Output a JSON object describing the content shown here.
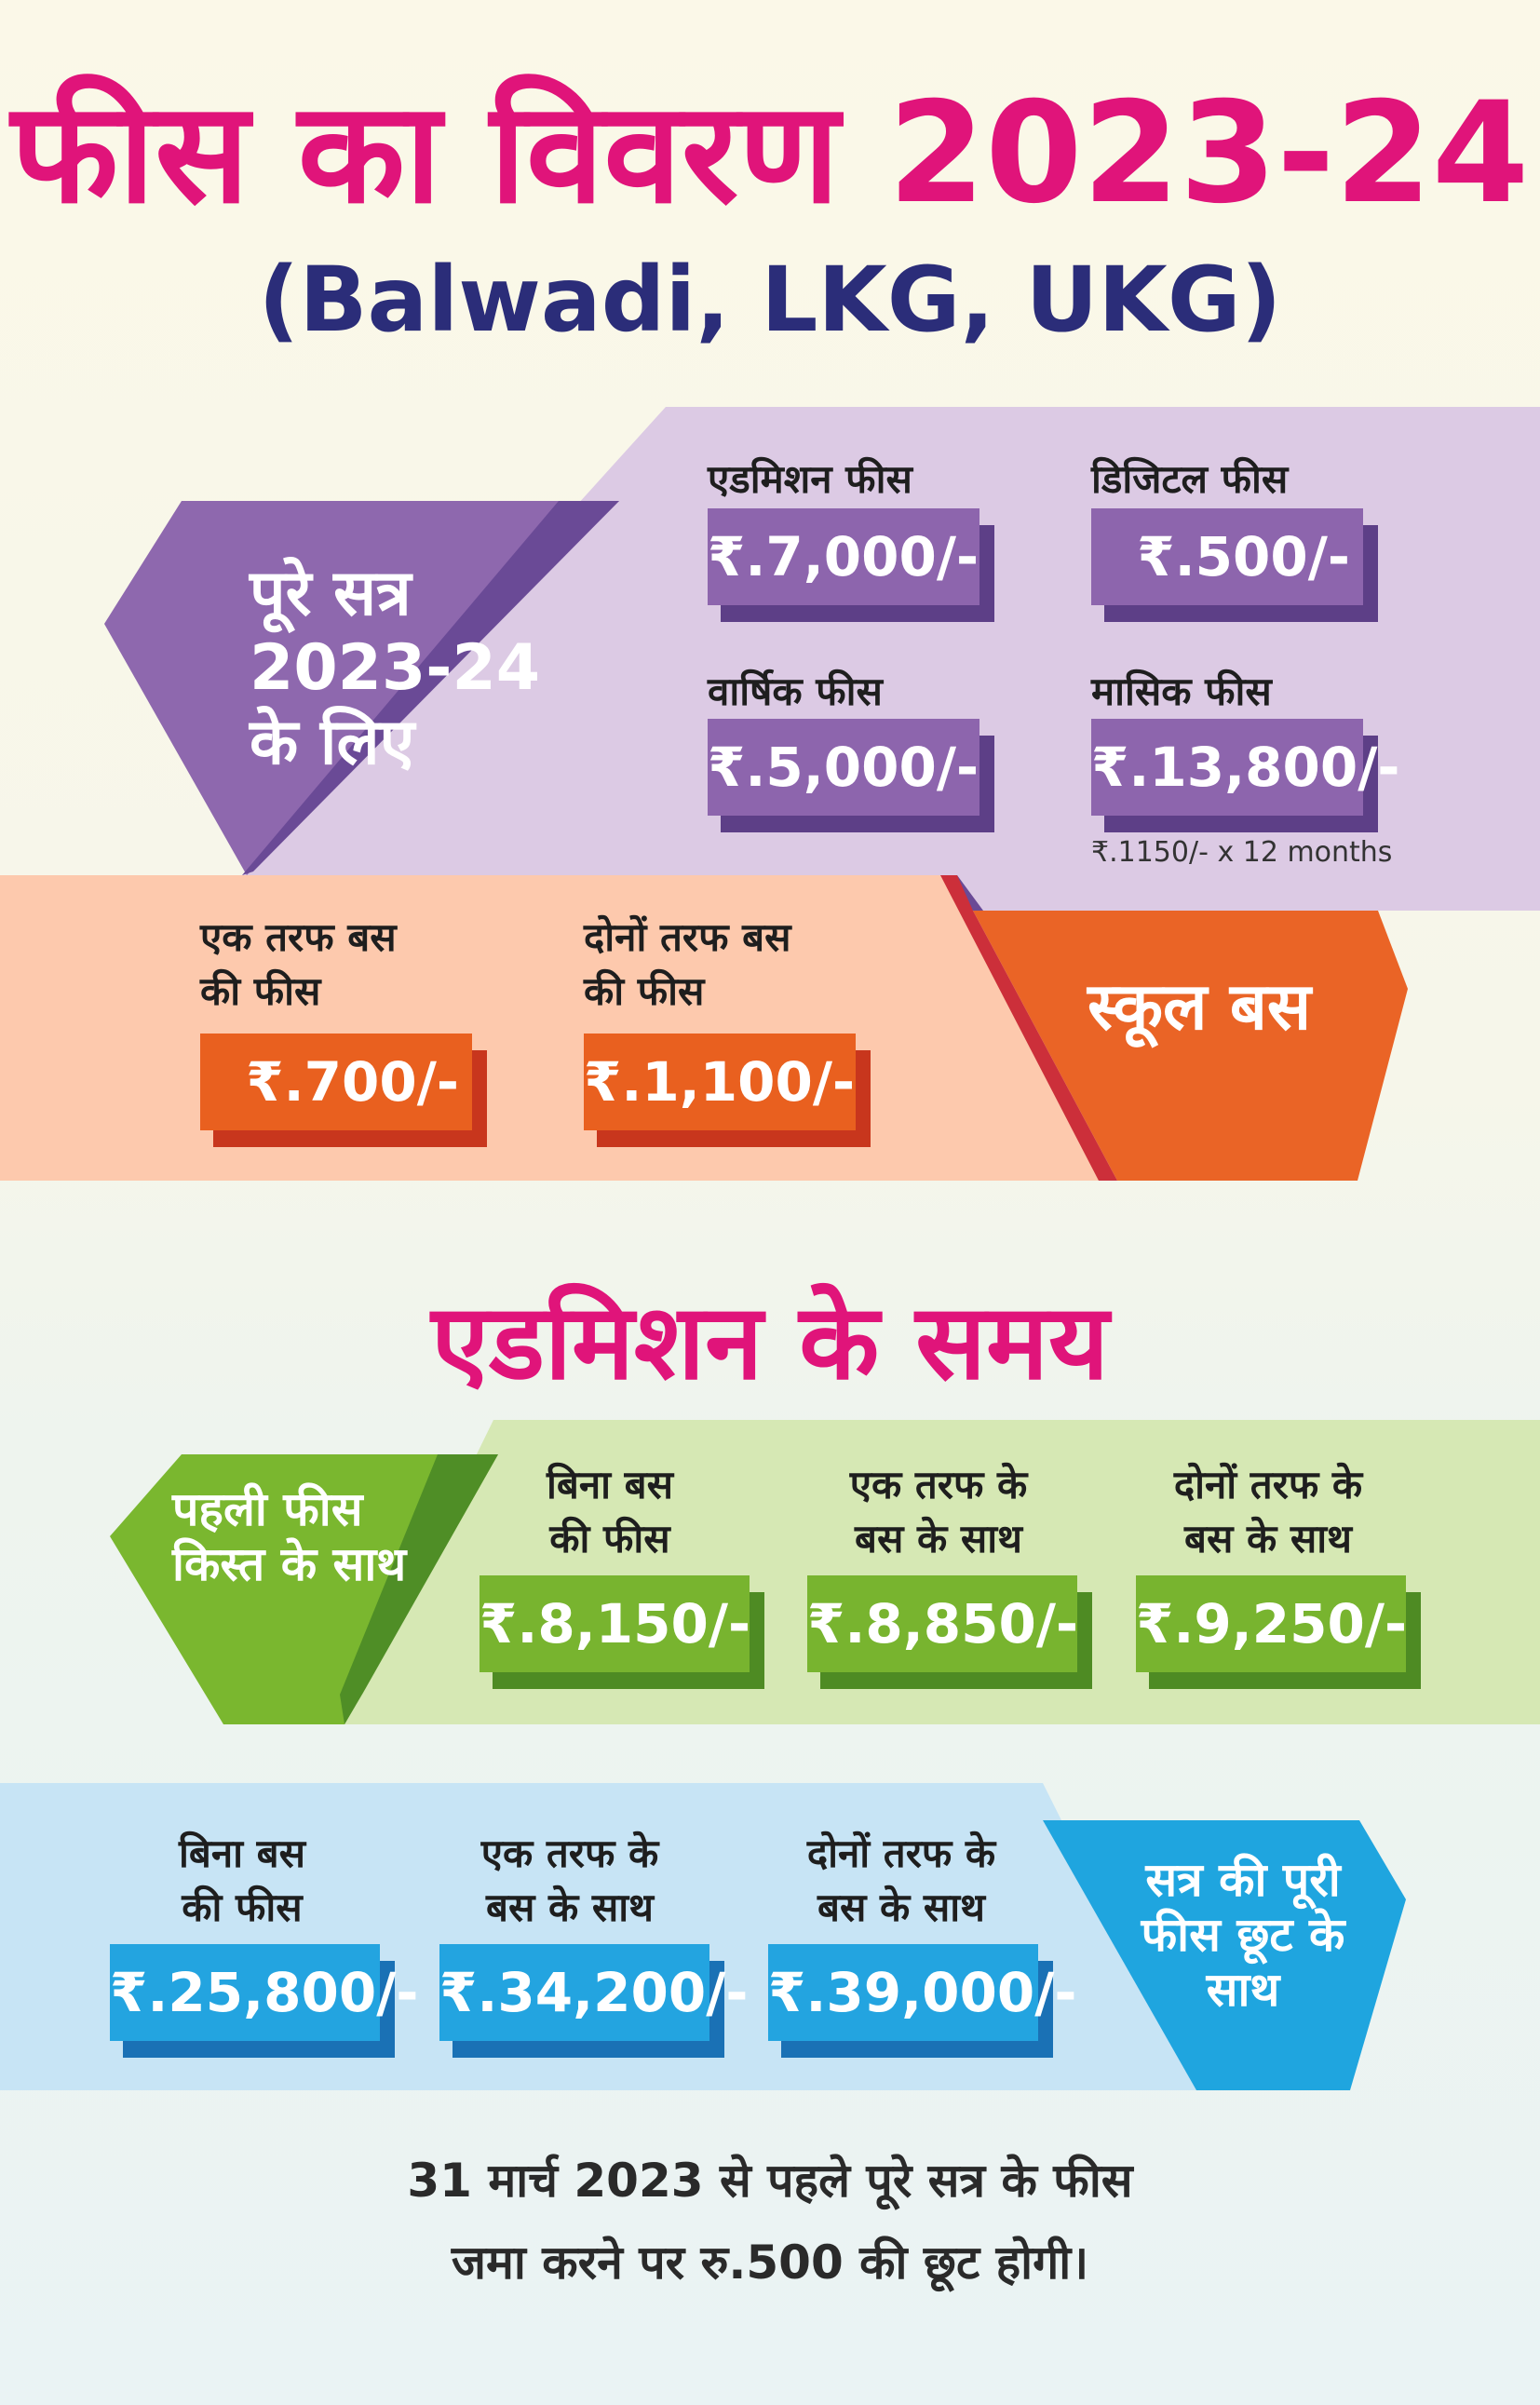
{
  "header": {
    "title": "फीस का विवरण 2023-24",
    "subtitle": "(Balwadi, LKG, UKG)"
  },
  "session": {
    "side_label": [
      "पूरे सत्र",
      "2023-24",
      "के लिए"
    ],
    "items": [
      {
        "label": "एडमिशन फीस",
        "amount": "₹.7,000/-"
      },
      {
        "label": "डिजिटल फीस",
        "amount": "₹.500/-"
      },
      {
        "label": "वार्षिक फीस",
        "amount": "₹.5,000/-"
      },
      {
        "label": "मासिक फीस",
        "amount": "₹.13,800/-",
        "note": "₹.1150/- x 12 months"
      }
    ]
  },
  "bus": {
    "side_label": "स्कूल बस",
    "items": [
      {
        "label_line1": "एक तरफ बस",
        "label_line2": "की फीस",
        "amount": "₹.700/-"
      },
      {
        "label_line1": "दोनों तरफ बस",
        "label_line2": "की फीस",
        "amount": "₹.1,100/-"
      }
    ]
  },
  "admission": {
    "heading": "एडमिशन के समय",
    "first_installment": {
      "side_label_line1": "पहली फीस",
      "side_label_line2": "किस्त के साथ",
      "items": [
        {
          "label_line1": "बिना बस",
          "label_line2": "की फीस",
          "amount": "₹.8,150/-"
        },
        {
          "label_line1": "एक तरफ के",
          "label_line2": "बस के साथ",
          "amount": "₹.8,850/-"
        },
        {
          "label_line1": "दोनों तरफ के",
          "label_line2": "बस के साथ",
          "amount": "₹.9,250/-"
        }
      ]
    },
    "full_session": {
      "side_label_line1": "सत्र की पूरी",
      "side_label_line2": "फीस छूट के",
      "side_label_line3": "साथ",
      "items": [
        {
          "label_line1": "बिना बस",
          "label_line2": "की फीस",
          "amount": "₹.25,800/-"
        },
        {
          "label_line1": "एक तरफ के",
          "label_line2": "बस के साथ",
          "amount": "₹.34,200/-"
        },
        {
          "label_line1": "दोनों तरफ के",
          "label_line2": "बस के साथ",
          "amount": "₹.39,000/-"
        }
      ]
    }
  },
  "footer": {
    "line1": "31 मार्च 2023 से पहले पूरे सत्र के फीस",
    "line2": "जमा करने पर रु.500 की छूट होगी।"
  },
  "colors": {
    "title": "#e0147a",
    "subtitle": "#2b2d79",
    "purple": "#8d65ad",
    "orange": "#e9601f",
    "green": "#78b42f",
    "blue": "#23a4e0"
  }
}
